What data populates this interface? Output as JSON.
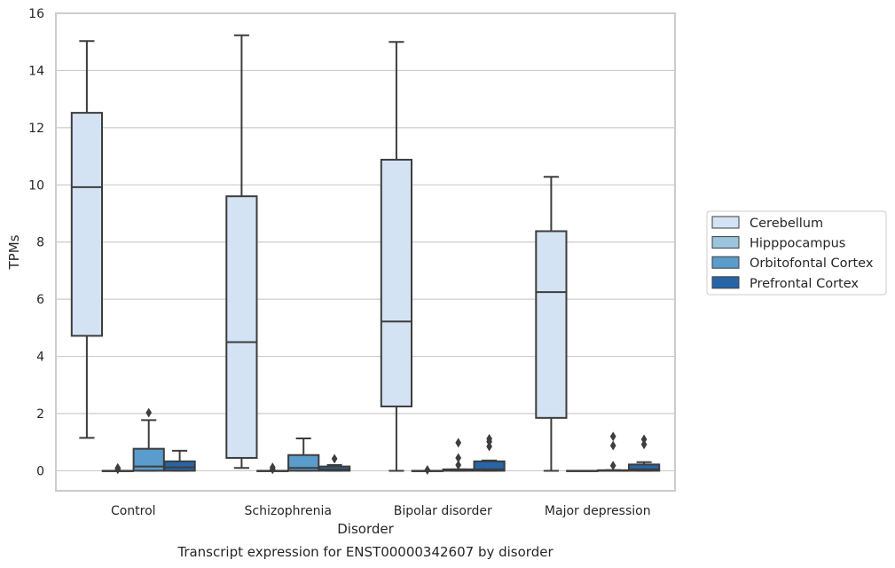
{
  "chart_data": {
    "type": "box",
    "title": "",
    "caption": "Transcript expression for ENST00000342607 by disorder",
    "xlabel": "Disorder",
    "ylabel": "TPMs",
    "ylim": [
      -0.7,
      16
    ],
    "yticks": [
      0,
      2,
      4,
      6,
      8,
      10,
      12,
      14,
      16
    ],
    "categories": [
      "Control",
      "Schizophrenia",
      "Bipolar disorder",
      "Major depression"
    ],
    "grid": true,
    "legend_position": "right",
    "series": [
      {
        "name": "Cerebellum",
        "color": "#d4e3f3",
        "boxes": [
          {
            "q1": 4.72,
            "median": 9.92,
            "q3": 12.52,
            "whisker_low": 1.15,
            "whisker_high": 15.03,
            "outliers": []
          },
          {
            "q1": 0.45,
            "median": 4.5,
            "q3": 9.6,
            "whisker_low": 0.1,
            "whisker_high": 15.23,
            "outliers": []
          },
          {
            "q1": 2.25,
            "median": 5.22,
            "q3": 10.88,
            "whisker_low": 0.0,
            "whisker_high": 15.0,
            "outliers": []
          },
          {
            "q1": 1.85,
            "median": 6.25,
            "q3": 8.38,
            "whisker_low": 0.0,
            "whisker_high": 10.28,
            "outliers": []
          }
        ]
      },
      {
        "name": "Hipppocampus",
        "color": "#9bc4df",
        "boxes": [
          {
            "q1": 0.0,
            "median": 0.0,
            "q3": 0.0,
            "whisker_low": 0.0,
            "whisker_high": 0.0,
            "outliers": [
              0.05,
              0.1
            ]
          },
          {
            "q1": 0.0,
            "median": 0.0,
            "q3": 0.0,
            "whisker_low": 0.0,
            "whisker_high": 0.0,
            "outliers": [
              0.05,
              0.12
            ]
          },
          {
            "q1": 0.0,
            "median": 0.0,
            "q3": 0.0,
            "whisker_low": 0.0,
            "whisker_high": 0.0,
            "outliers": [
              0.03
            ]
          },
          {
            "q1": 0.0,
            "median": 0.0,
            "q3": 0.0,
            "whisker_low": 0.0,
            "whisker_high": 0.0,
            "outliers": []
          }
        ]
      },
      {
        "name": "Orbitofontal Cortex",
        "color": "#5a9ccb",
        "boxes": [
          {
            "q1": 0.0,
            "median": 0.15,
            "q3": 0.77,
            "whisker_low": 0.0,
            "whisker_high": 1.77,
            "outliers": [
              2.03
            ]
          },
          {
            "q1": 0.0,
            "median": 0.1,
            "q3": 0.55,
            "whisker_low": 0.0,
            "whisker_high": 1.13,
            "outliers": []
          },
          {
            "q1": 0.0,
            "median": 0.02,
            "q3": 0.05,
            "whisker_low": 0.0,
            "whisker_high": 0.05,
            "outliers": [
              0.2,
              0.45,
              0.98
            ]
          },
          {
            "q1": 0.0,
            "median": 0.0,
            "q3": 0.02,
            "whisker_low": 0.0,
            "whisker_high": 0.02,
            "outliers": [
              0.18,
              0.88,
              1.2
            ]
          }
        ]
      },
      {
        "name": "Prefrontal Cortex",
        "color": "#2865a7",
        "boxes": [
          {
            "q1": 0.0,
            "median": 0.12,
            "q3": 0.33,
            "whisker_low": 0.0,
            "whisker_high": 0.7,
            "outliers": []
          },
          {
            "q1": 0.0,
            "median": 0.05,
            "q3": 0.15,
            "whisker_low": 0.0,
            "whisker_high": 0.2,
            "outliers": [
              0.42
            ]
          },
          {
            "q1": 0.0,
            "median": 0.05,
            "q3": 0.33,
            "whisker_low": 0.0,
            "whisker_high": 0.36,
            "outliers": [
              0.85,
              1.02,
              1.12
            ]
          },
          {
            "q1": 0.0,
            "median": 0.05,
            "q3": 0.22,
            "whisker_low": 0.0,
            "whisker_high": 0.3,
            "outliers": [
              0.92,
              1.1
            ]
          }
        ]
      }
    ]
  }
}
